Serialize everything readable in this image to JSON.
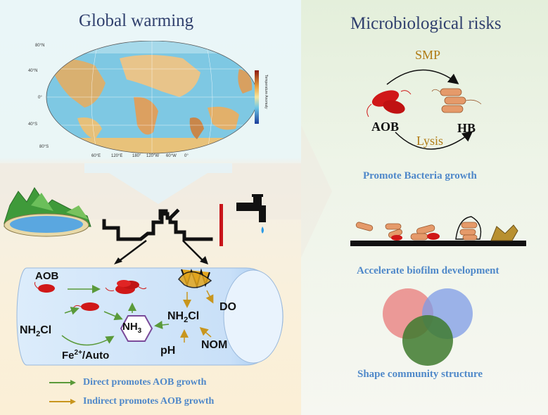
{
  "left_title": "Global warming",
  "right_title": "Microbiological risks",
  "map": {
    "lat_labels": [
      "80°N",
      "40°N",
      "0°",
      "40°S",
      "80°S"
    ],
    "lon_labels": [
      "60°E",
      "120°E",
      "180°",
      "120°W",
      "60°W",
      "0°"
    ],
    "colorbar_label": "Temperature Anomaly"
  },
  "pipe_diagram": {
    "aob_label": "AOB",
    "nh2cl_left_prefix": "NH",
    "nh2cl_left_sub": "2",
    "nh2cl_left_suffix": "Cl",
    "nh3_prefix": "NH",
    "nh3_sub": "3",
    "nh2cl_right_prefix": "NH",
    "nh2cl_right_sub": "2",
    "nh2cl_right_suffix": "Cl",
    "do_label": "DO",
    "ph_label": "pH",
    "nom_label": "NOM",
    "fe_prefix": "Fe",
    "fe_sup": "2+",
    "fe_suffix": "/Auto"
  },
  "legend": {
    "direct": "Direct promotes AOB growth",
    "indirect": "Indirect promotes AOB growth",
    "direct_color": "#5a9a3a",
    "indirect_color": "#c8961e"
  },
  "risks": {
    "smp_label": "SMP",
    "lysis_label": "Lysis",
    "aob_label": "AOB",
    "hb_label": "HB",
    "caption_growth": "Promote Bacteria growth",
    "caption_biofilm": "Accelerate biofilm development",
    "caption_community": "Shape community structure"
  },
  "colors": {
    "title": "#2f3f6d",
    "caption": "#4f88c9",
    "aob_red": "#d01818",
    "hb_orange": "#e59a6a",
    "venn_red": "#e87a7a",
    "venn_blue": "#7d9be6",
    "venn_green": "#3e7a2e"
  }
}
